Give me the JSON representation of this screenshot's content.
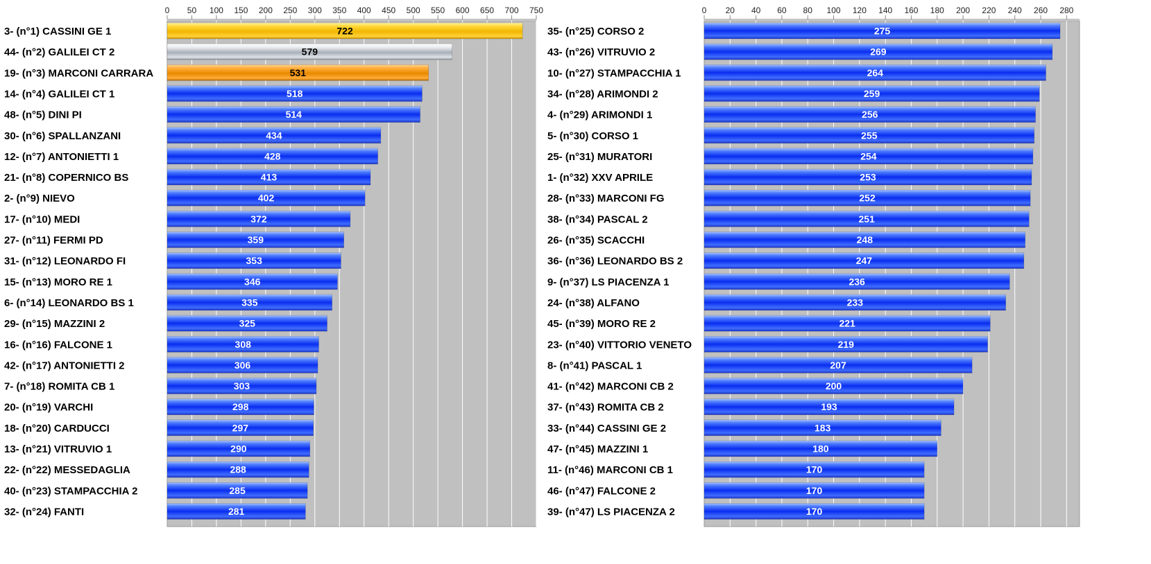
{
  "chart_data": [
    {
      "type": "bar",
      "orientation": "horizontal",
      "xlim": [
        0,
        750
      ],
      "ticks": [
        0,
        50,
        100,
        150,
        200,
        250,
        300,
        350,
        400,
        450,
        500,
        550,
        600,
        650,
        700,
        750
      ],
      "grid": true,
      "categories": [
        "3- (n°1) CASSINI GE 1",
        "44- (n°2) GALILEI CT 2",
        "19- (n°3) MARCONI CARRARA",
        "14- (n°4) GALILEI CT 1",
        "48- (n°5) DINI PI",
        "30- (n°6) SPALLANZANI",
        "12- (n°7) ANTONIETTI 1",
        "21- (n°8) COPERNICO BS",
        "2- (n°9) NIEVO",
        "17- (n°10) MEDI",
        "27- (n°11) FERMI PD",
        "31- (n°12) LEONARDO FI",
        "15- (n°13) MORO RE 1",
        "6- (n°14) LEONARDO BS 1",
        "29- (n°15) MAZZINI 2",
        "16- (n°16) FALCONE 1",
        "42- (n°17) ANTONIETTI 2",
        "7- (n°18) ROMITA CB 1",
        "20- (n°19) VARCHI",
        "18- (n°20) CARDUCCI",
        "13- (n°21) VITRUVIO 1",
        "22- (n°22) MESSEDAGLIA",
        "40- (n°23) STAMPACCHIA 2",
        "32- (n°24) FANTI"
      ],
      "values": [
        722,
        579,
        531,
        518,
        514,
        434,
        428,
        413,
        402,
        372,
        359,
        353,
        346,
        335,
        325,
        308,
        306,
        303,
        298,
        297,
        290,
        288,
        285,
        281
      ],
      "bar_styles": [
        "gold",
        "silver",
        "bronze",
        "blue",
        "blue",
        "blue",
        "blue",
        "blue",
        "blue",
        "blue",
        "blue",
        "blue",
        "blue",
        "blue",
        "blue",
        "blue",
        "blue",
        "blue",
        "blue",
        "blue",
        "blue",
        "blue",
        "blue",
        "blue"
      ]
    },
    {
      "type": "bar",
      "orientation": "horizontal",
      "xlim": [
        0,
        290
      ],
      "ticks": [
        0,
        20,
        40,
        60,
        80,
        100,
        120,
        140,
        160,
        180,
        200,
        220,
        240,
        260,
        280
      ],
      "grid": true,
      "categories": [
        "35- (n°25) CORSO 2",
        "43- (n°26) VITRUVIO 2",
        "10- (n°27) STAMPACCHIA 1",
        "34- (n°28) ARIMONDI 2",
        "4- (n°29) ARIMONDI 1",
        "5- (n°30) CORSO 1",
        "25- (n°31) MURATORI",
        "1- (n°32) XXV APRILE",
        "28- (n°33) MARCONI FG",
        "38- (n°34) PASCAL 2",
        "26- (n°35) SCACCHI",
        "36- (n°36) LEONARDO BS 2",
        "9- (n°37) LS PIACENZA 1",
        "24- (n°38) ALFANO",
        "45- (n°39) MORO RE 2",
        "23- (n°40) VITTORIO VENETO",
        "8- (n°41) PASCAL 1",
        "41- (n°42) MARCONI CB 2",
        "37- (n°43) ROMITA CB 2",
        "33- (n°44) CASSINI GE 2",
        "47- (n°45) MAZZINI 1",
        "11- (n°46) MARCONI CB 1",
        "46- (n°47) FALCONE 2",
        "39- (n°47) LS PIACENZA 2"
      ],
      "values": [
        275,
        269,
        264,
        259,
        256,
        255,
        254,
        253,
        252,
        251,
        248,
        247,
        236,
        233,
        221,
        219,
        207,
        200,
        193,
        183,
        180,
        170,
        170,
        170
      ],
      "bar_styles": [
        "blue",
        "blue",
        "blue",
        "blue",
        "blue",
        "blue",
        "blue",
        "blue",
        "blue",
        "blue",
        "blue",
        "blue",
        "blue",
        "blue",
        "blue",
        "blue",
        "blue",
        "blue",
        "blue",
        "blue",
        "blue",
        "blue",
        "blue",
        "blue"
      ]
    }
  ],
  "colors": {
    "plot_background": "#c0c0c0",
    "gridline": "#ffffff",
    "blue_bar": "#1f4dff",
    "gold_bar": "#f2c200",
    "silver_bar": "#c9ced4",
    "bronze_bar": "#f29a10",
    "label_text": "#000000",
    "value_text_on_blue": "#ffffff",
    "value_text_on_medal": "#000000"
  }
}
